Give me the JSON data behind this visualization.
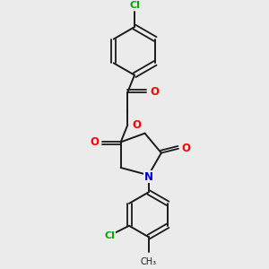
{
  "background_color": "#ebebeb",
  "bond_color": "#1a1a1a",
  "atom_colors": {
    "O": "#ff0000",
    "N": "#0000cc",
    "Cl": "#00aa00",
    "C": "#1a1a1a"
  },
  "figsize": [
    3.0,
    3.0
  ],
  "dpi": 100
}
